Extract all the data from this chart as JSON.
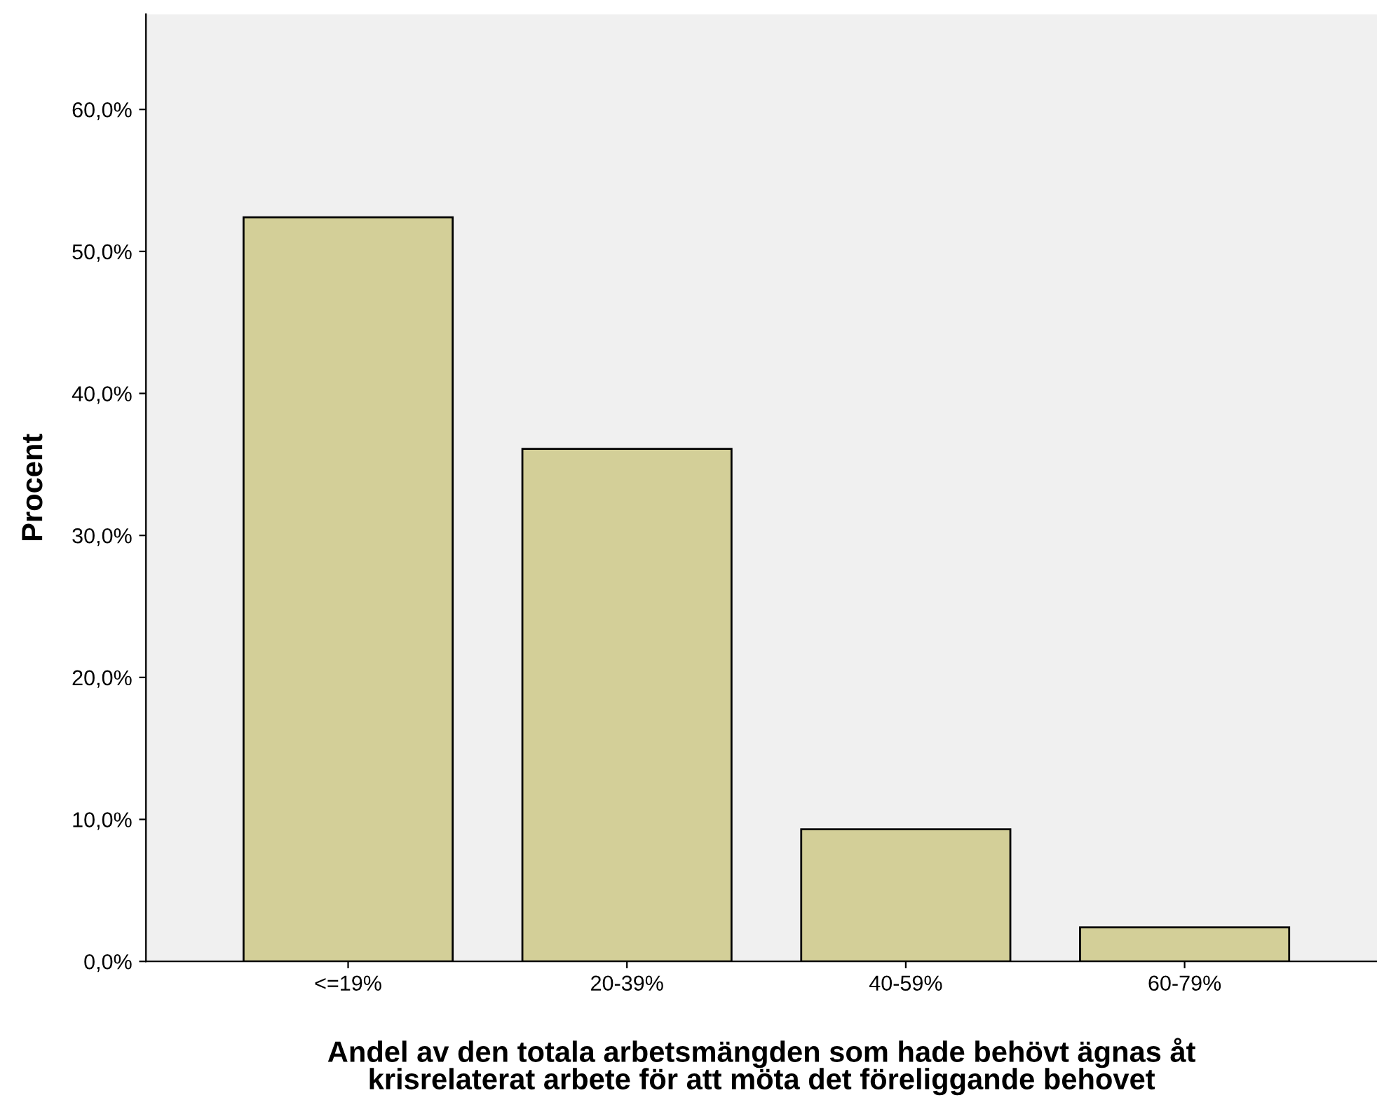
{
  "chart_data": {
    "type": "bar",
    "xlabel": "Andel av den totala arbetsmängden som hade behövt ägnas åt\nkrisrelaterat arbete för att möta det föreliggande behovet",
    "ylabel": "Procent",
    "categories": [
      "<=19%",
      "20-39%",
      "40-59%",
      "60-79%"
    ],
    "values": [
      52.4,
      36.1,
      9.3,
      2.4
    ],
    "color": "#d3cf98",
    "ylim": [
      0,
      66.7
    ],
    "yticks": [
      {
        "value": 0,
        "label": "0,0%"
      },
      {
        "value": 10,
        "label": "10,0%"
      },
      {
        "value": 20,
        "label": "20,0%"
      },
      {
        "value": 30,
        "label": "30,0%"
      },
      {
        "value": 40,
        "label": "40,0%"
      },
      {
        "value": 50,
        "label": "50,0%"
      },
      {
        "value": 60,
        "label": "60,0%"
      }
    ],
    "grid": false,
    "legend": false
  }
}
